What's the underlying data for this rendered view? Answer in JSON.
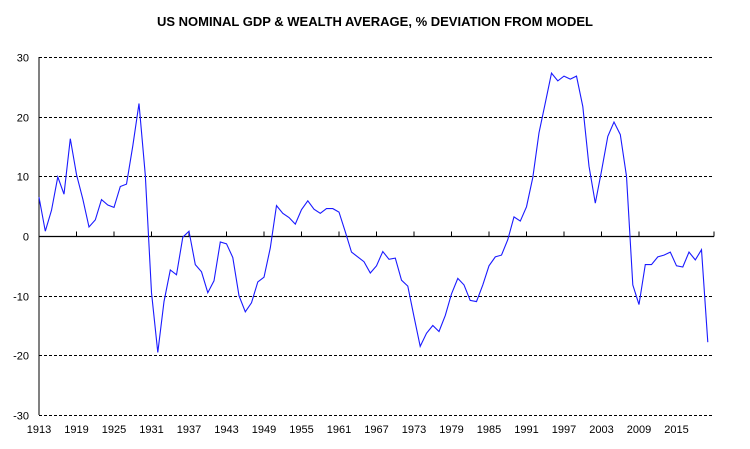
{
  "chart_data": {
    "type": "line",
    "title": "US NOMINAL GDP & WEALTH AVERAGE, % DEVIATION FROM MODEL",
    "xlabel": "",
    "ylabel": "",
    "xlim": [
      1913,
      2021
    ],
    "ylim": [
      -30,
      30
    ],
    "y_ticks": [
      30,
      20,
      10,
      0,
      -10,
      -20,
      -30
    ],
    "x_ticks": [
      1913,
      1919,
      1925,
      1931,
      1937,
      1943,
      1949,
      1955,
      1961,
      1967,
      1973,
      1979,
      1985,
      1991,
      1997,
      2003,
      2009,
      2015
    ],
    "grid": "horizontal dashed",
    "line_color": "#1a1aff",
    "series": [
      {
        "x": [
          1913,
          1914,
          1915,
          1916,
          1917,
          1918,
          1919,
          1920,
          1921,
          1922,
          1923,
          1924,
          1925,
          1926,
          1927,
          1928,
          1929,
          1930,
          1931,
          1932,
          1933,
          1934,
          1935,
          1936,
          1937,
          1938,
          1939,
          1940,
          1941,
          1942,
          1943,
          1944,
          1945,
          1946,
          1947,
          1948,
          1949,
          1950,
          1951,
          1952,
          1953,
          1954,
          1955,
          1956,
          1957,
          1958,
          1959,
          1960,
          1961,
          1962,
          1963,
          1964,
          1965,
          1966,
          1967,
          1968,
          1969,
          1970,
          1971,
          1972,
          1973,
          1974,
          1975,
          1976,
          1977,
          1978,
          1979,
          1980,
          1981,
          1982,
          1983,
          1984,
          1985,
          1986,
          1987,
          1988,
          1989,
          1990,
          1991,
          1992,
          1993,
          1994,
          1995,
          1996,
          1997,
          1998,
          1999,
          2000,
          2001,
          2002,
          2003,
          2004,
          2005,
          2006,
          2007,
          2008,
          2009,
          2010,
          2011,
          2012,
          2013,
          2014,
          2015,
          2016,
          2017,
          2018,
          2019,
          2020
        ],
        "values": [
          6.5,
          0.8,
          4.3,
          9.9,
          7.0,
          16.3,
          10.3,
          6.2,
          1.5,
          2.7,
          6.1,
          5.2,
          4.8,
          8.3,
          8.7,
          15.1,
          22.2,
          10.2,
          -9.5,
          -19.5,
          -11.0,
          -5.7,
          -6.5,
          -0.2,
          0.8,
          -4.8,
          -6.0,
          -9.5,
          -7.5,
          -1.0,
          -1.3,
          -3.6,
          -10.0,
          -12.7,
          -11.2,
          -7.7,
          -6.9,
          -2.0,
          5.1,
          3.8,
          3.1,
          2.0,
          4.4,
          5.9,
          4.5,
          3.8,
          4.6,
          4.6,
          4.0,
          0.7,
          -2.7,
          -3.5,
          -4.3,
          -6.2,
          -5.0,
          -2.6,
          -3.9,
          -3.7,
          -7.4,
          -8.4,
          -13.5,
          -18.5,
          -16.3,
          -15.0,
          -16.0,
          -13.3,
          -9.7,
          -7.1,
          -8.2,
          -10.8,
          -11.0,
          -8.2,
          -5.0,
          -3.5,
          -3.2,
          -0.6,
          3.2,
          2.5,
          4.9,
          9.8,
          17.3,
          22.3,
          27.3,
          26.0,
          26.8,
          26.3,
          26.8,
          21.7,
          11.7,
          5.5,
          10.9,
          16.7,
          19.1,
          17.0,
          10.0,
          -8.2,
          -11.5,
          -4.8,
          -4.8,
          -3.5,
          -3.2,
          -2.7,
          -5.0,
          -5.2,
          -2.7,
          -4.0,
          -2.3,
          -17.8
        ]
      }
    ]
  }
}
